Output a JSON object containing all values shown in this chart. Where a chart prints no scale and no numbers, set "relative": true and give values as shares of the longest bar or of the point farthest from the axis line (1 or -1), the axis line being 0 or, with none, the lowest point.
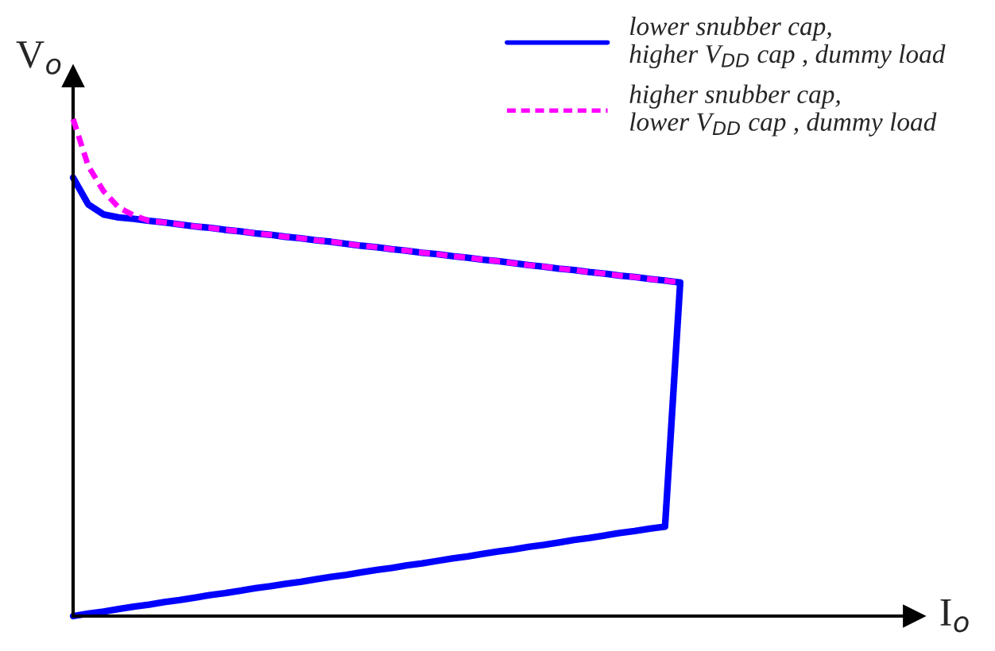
{
  "chart_data": {
    "type": "line",
    "relative": true,
    "annotations": [
      "I$_{o}$"
    ],
    "ylabel": "V$_{o}$",
    "legend": "top right",
    "marker": "none",
    "categories": [
      null,
      null,
      null,
      null,
      null,
      null,
      null,
      null,
      null,
      null,
      null,
      null,
      null,
      null,
      null,
      null,
      null,
      null,
      null,
      null,
      null,
      null,
      null,
      null,
      null,
      null,
      null,
      null,
      null,
      null,
      null,
      null,
      null,
      null,
      null,
      null,
      null,
      null,
      null,
      null,
      null
    ],
    "series": [
      {
        "name": "lower snubber cap,\nhigher V$_{DD}$ cap , dummy load",
        "color": "#0000ff",
        "line_style": "solid",
        "values": [
          0.882,
          0.828,
          0.808,
          0.802,
          0.799,
          0.795,
          0.792,
          0.788,
          0.784,
          0.781,
          0.777,
          0.774,
          0.77,
          0.767,
          0.763,
          0.76,
          0.756,
          0.753,
          0.749,
          0.745,
          0.742,
          0.738,
          0.735,
          0.731,
          0.728,
          0.724,
          0.721,
          0.717,
          0.714,
          0.71,
          0.706,
          0.703,
          0.699,
          0.696,
          0.692,
          0.689,
          0.685,
          0.682,
          0.678,
          0.675,
          0.671
        ]
      },
      {
        "color": "#0000ff",
        "line_style": "solid",
        "values": [
          0,
          0.005,
          0.009,
          0.014,
          0.019,
          0.023,
          0.028,
          0.032,
          0.037,
          0.042,
          0.046,
          0.051,
          0.056,
          0.06,
          0.065,
          0.069,
          0.074,
          0.079,
          0.083,
          0.088,
          0.093,
          0.097,
          0.102,
          0.106,
          0.111,
          0.116,
          0.12,
          0.125,
          0.13,
          0.134,
          0.139,
          0.143,
          0.148,
          0.153,
          0.157,
          0.162,
          0.167,
          0.171,
          0.176,
          0.18,
          0.671
        ]
      },
      {
        "name": "higher snubber cap,\nlower V$_{DD}$ cap , dummy load",
        "color": "#ff00ff",
        "line_style": "dashed",
        "values": [
          1,
          0.905,
          0.855,
          0.822,
          0.806,
          0.795,
          0.792,
          0.788,
          0.784,
          0.781,
          0.777,
          0.774,
          0.77,
          0.767,
          0.763,
          0.76,
          0.756,
          0.753,
          0.749,
          0.745,
          0.742,
          0.738,
          0.735,
          0.731,
          0.728,
          0.724,
          0.721,
          0.717,
          0.714,
          0.71,
          0.706,
          0.703,
          0.699,
          0.696,
          0.692,
          0.689,
          0.685,
          0.682,
          0.678,
          0.675,
          0.671
        ]
      }
    ]
  }
}
